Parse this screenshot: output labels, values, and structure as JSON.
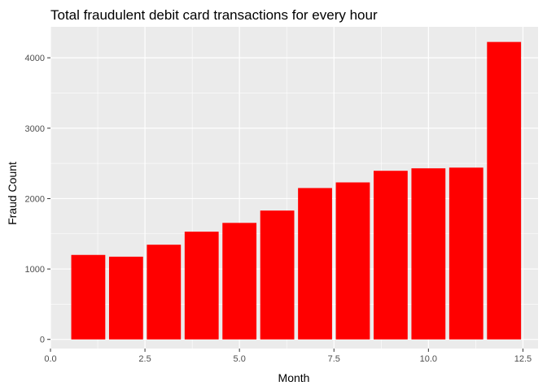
{
  "chart_data": {
    "type": "bar",
    "title": "Total fraudulent debit card transactions for every hour",
    "xlabel": "Month",
    "ylabel": "Fraud Count",
    "x": [
      1,
      2,
      3,
      4,
      5,
      6,
      7,
      8,
      9,
      10,
      11,
      12
    ],
    "values": [
      1200,
      1175,
      1345,
      1530,
      1655,
      1830,
      2150,
      2230,
      2395,
      2430,
      2440,
      4225
    ],
    "bar_width": 0.9,
    "xlim": [
      0,
      12.9
    ],
    "ylim": [
      -130,
      4440
    ],
    "x_ticks": [
      0,
      2.5,
      5,
      7.5,
      10,
      12.5
    ],
    "x_tick_labels": [
      "0.0",
      "2.5",
      "5.0",
      "7.5",
      "10.0",
      "12.5"
    ],
    "y_ticks": [
      0,
      1000,
      2000,
      3000,
      4000
    ],
    "y_tick_labels": [
      "0",
      "1000",
      "2000",
      "3000",
      "4000"
    ],
    "grid": true,
    "bar_color": "#ff0000",
    "panel_color": "#ebebeb",
    "grid_color": "#ffffff"
  }
}
